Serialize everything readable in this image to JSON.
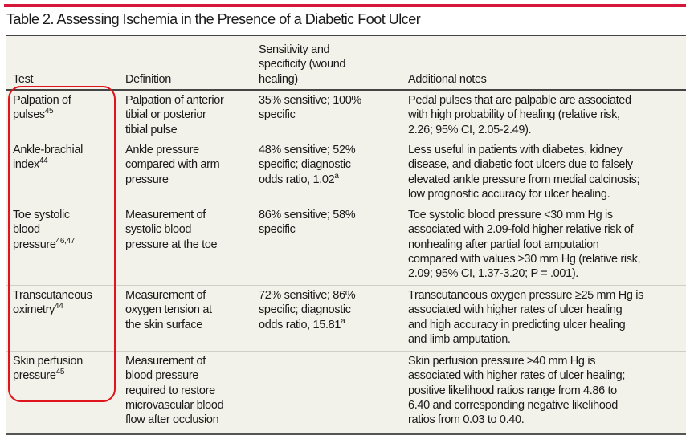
{
  "title": "Table 2. Assessing Ischemia in the Presence of a Diabetic Foot Ulcer",
  "colors": {
    "accent": "#d6173a",
    "table_bg": "#f3f2ea",
    "highlight": "#e0141c"
  },
  "headers": [
    [
      "Test"
    ],
    [
      "Definition"
    ],
    [
      "Sensitivity and",
      "specificity (wound",
      "healing)"
    ],
    [
      "Additional notes"
    ]
  ],
  "rows": [
    {
      "test": [
        "Palpation of",
        "pulses"
      ],
      "test_ref": "45",
      "definition": [
        "Palpation of anterior",
        "tibial or posterior",
        "tibial pulse"
      ],
      "sens": [
        "35% sensitive; 100%",
        "specific"
      ],
      "sens_ref": "",
      "notes": [
        "Pedal pulses that are palpable are associated",
        "with high probability of healing (relative risk,",
        "2.26; 95% CI, 2.05-2.49)."
      ]
    },
    {
      "test": [
        "Ankle-brachial",
        "index"
      ],
      "test_ref": "44",
      "definition": [
        "Ankle pressure",
        "compared with arm",
        "pressure"
      ],
      "sens": [
        "48% sensitive; 52%",
        "specific; diagnostic",
        "odds ratio, 1.02"
      ],
      "sens_ref": "a",
      "notes": [
        "Less useful in patients with diabetes, kidney",
        "disease, and diabetic foot ulcers due to falsely",
        "elevated ankle pressure from medial calcinosis;",
        "low prognostic accuracy for ulcer healing."
      ]
    },
    {
      "test": [
        "Toe systolic",
        "blood",
        "pressure"
      ],
      "test_ref": "46,47",
      "definition": [
        "Measurement of",
        "systolic blood",
        "pressure at the toe"
      ],
      "sens": [
        "86% sensitive; 58%",
        "specific"
      ],
      "sens_ref": "",
      "notes": [
        "Toe systolic blood pressure <30 mm Hg is",
        "associated with 2.09-fold higher relative risk of",
        "nonhealing after partial foot amputation",
        "compared with values ≥30 mm Hg (relative risk,",
        "2.09; 95% CI, 1.37-3.20; P = .001)."
      ]
    },
    {
      "test": [
        "Transcutaneous",
        "oximetry"
      ],
      "test_ref": "44",
      "definition": [
        "Measurement of",
        "oxygen tension at",
        "the skin surface"
      ],
      "sens": [
        "72% sensitive; 86%",
        "specific; diagnostic",
        "odds ratio, 15.81"
      ],
      "sens_ref": "a",
      "notes": [
        "Transcutaneous oxygen pressure ≥25 mm Hg is",
        "associated with higher rates of ulcer healing",
        "and high accuracy in predicting ulcer healing",
        "and limb amputation."
      ]
    },
    {
      "test": [
        "Skin perfusion",
        "pressure"
      ],
      "test_ref": "45",
      "definition": [
        "Measurement of",
        "blood pressure",
        "required to restore",
        "microvascular blood",
        "flow after occlusion"
      ],
      "sens": [],
      "sens_ref": "",
      "notes": [
        "Skin perfusion pressure ≥40 mm Hg is",
        "associated with higher rates of ulcer healing;",
        "positive likelihood ratios range from 4.86 to",
        "6.40 and corresponding negative likelihood",
        "ratios from 0.03 to 0.40."
      ]
    }
  ]
}
